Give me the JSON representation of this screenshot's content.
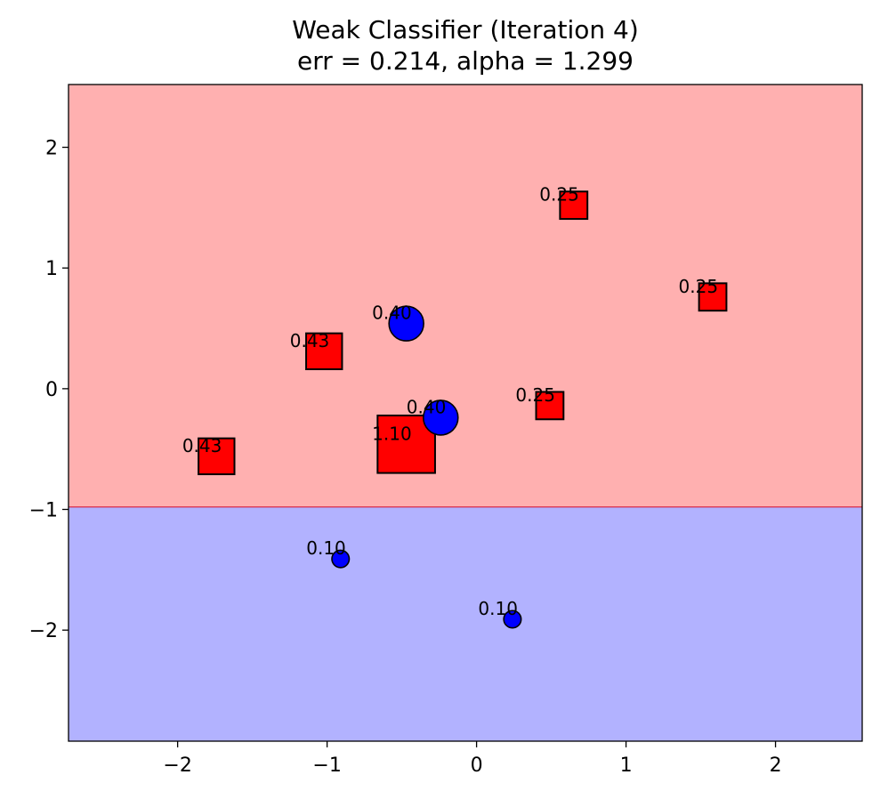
{
  "chart_data": {
    "type": "scatter",
    "title": "Weak Classifier (Iteration 4)",
    "subtitle": "err = 0.214, alpha = 1.299",
    "xlim": [
      -2.73,
      2.58
    ],
    "ylim": [
      -2.92,
      2.52
    ],
    "xticks": [
      -2,
      -1,
      0,
      1,
      2
    ],
    "yticks": [
      2,
      1,
      0,
      -1,
      -2
    ],
    "xtick_labels": [
      "−2",
      "−1",
      "0",
      "1",
      "2"
    ],
    "ytick_labels": [
      "2",
      "1",
      "0",
      "−1",
      "−2"
    ],
    "grid": false,
    "decision_boundary": {
      "orientation": "horizontal",
      "y": -0.98,
      "upper_region_color": "#ffb0b0",
      "lower_region_color": "#b2b2ff",
      "line_color": "#d61a3c"
    },
    "classes": [
      {
        "marker": "square",
        "color": "#ff0000"
      },
      {
        "marker": "circle",
        "color": "#0000ff"
      }
    ],
    "points": [
      {
        "x": 0.65,
        "y": 1.52,
        "weight": 0.25,
        "label": "0.25",
        "marker": "square",
        "color": "#ff0000"
      },
      {
        "x": 1.58,
        "y": 0.76,
        "weight": 0.25,
        "label": "0.25",
        "marker": "square",
        "color": "#ff0000"
      },
      {
        "x": -1.02,
        "y": 0.31,
        "weight": 0.43,
        "label": "0.43",
        "marker": "square",
        "color": "#ff0000"
      },
      {
        "x": 0.49,
        "y": -0.14,
        "weight": 0.25,
        "label": "0.25",
        "marker": "square",
        "color": "#ff0000"
      },
      {
        "x": -1.74,
        "y": -0.56,
        "weight": 0.43,
        "label": "0.43",
        "marker": "square",
        "color": "#ff0000"
      },
      {
        "x": -0.47,
        "y": -0.46,
        "weight": 1.1,
        "label": "1.10",
        "marker": "square",
        "color": "#ff0000"
      },
      {
        "x": -0.47,
        "y": 0.54,
        "weight": 0.4,
        "label": "0.40",
        "marker": "circle",
        "color": "#0000ff"
      },
      {
        "x": -0.24,
        "y": -0.24,
        "weight": 0.4,
        "label": "0.40",
        "marker": "circle",
        "color": "#0000ff"
      },
      {
        "x": -0.91,
        "y": -1.41,
        "weight": 0.1,
        "label": "0.10",
        "marker": "circle",
        "color": "#0000ff"
      },
      {
        "x": 0.24,
        "y": -1.91,
        "weight": 0.1,
        "label": "0.10",
        "marker": "circle",
        "color": "#0000ff"
      }
    ]
  }
}
